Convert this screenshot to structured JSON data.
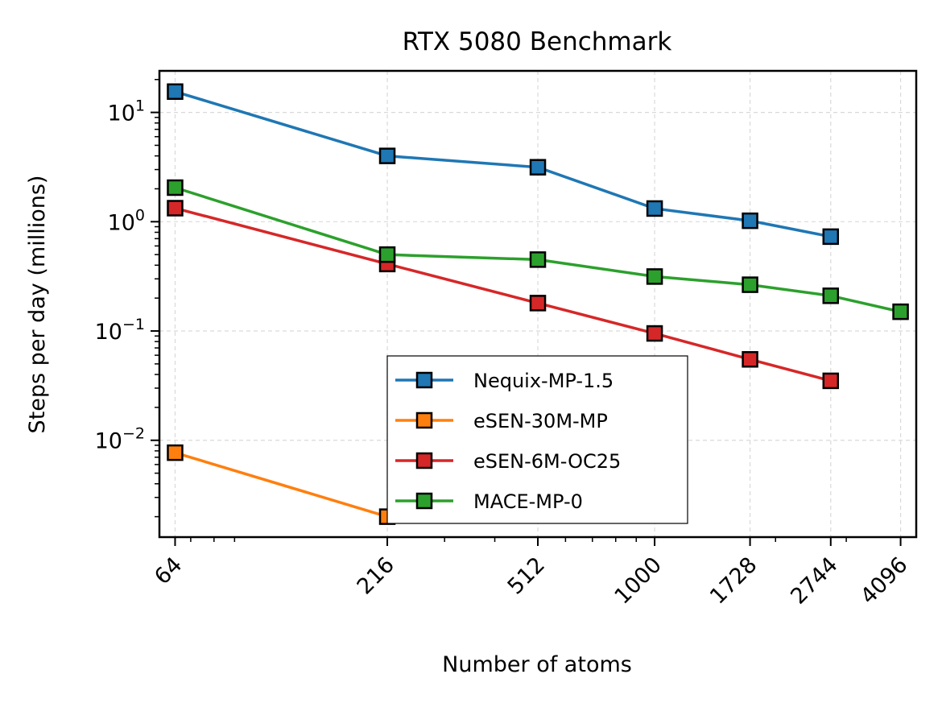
{
  "chart_data": {
    "type": "line",
    "title": "RTX 5080 Benchmark",
    "xlabel": "Number of atoms",
    "ylabel": "Steps per day (millions)",
    "xscale": "log",
    "yscale": "log",
    "x_ticks": [
      64,
      216,
      512,
      1000,
      1728,
      2744,
      4096
    ],
    "x_tick_labels": [
      "64",
      "216",
      "512",
      "1000",
      "1728",
      "2744",
      "4096"
    ],
    "y_ticks": [
      {
        "value": 0.01,
        "base": "10",
        "exp": "−2"
      },
      {
        "value": 0.1,
        "base": "10",
        "exp": "−1"
      },
      {
        "value": 1,
        "base": "10",
        "exp": "0"
      },
      {
        "value": 10,
        "base": "10",
        "exp": "1"
      }
    ],
    "ylim": [
      0.0013,
      24
    ],
    "grid": true,
    "legend_position": "lower center",
    "series": [
      {
        "name": "Nequix-MP-1.5",
        "color": "#1f77b4",
        "x": [
          64,
          216,
          512,
          1000,
          1728,
          2744
        ],
        "y": [
          15.5,
          4.0,
          3.15,
          1.32,
          1.02,
          0.73
        ]
      },
      {
        "name": "eSEN-30M-MP",
        "color": "#ff7f0e",
        "x": [
          64,
          216
        ],
        "y": [
          0.0077,
          0.002
        ]
      },
      {
        "name": "eSEN-6M-OC25",
        "color": "#d62728",
        "x": [
          64,
          216,
          512,
          1000,
          1728,
          2744
        ],
        "y": [
          1.33,
          0.41,
          0.18,
          0.095,
          0.055,
          0.035
        ]
      },
      {
        "name": "MACE-MP-0",
        "color": "#2ca02c",
        "x": [
          64,
          216,
          512,
          1000,
          1728,
          2744,
          4096
        ],
        "y": [
          2.05,
          0.5,
          0.45,
          0.315,
          0.265,
          0.21,
          0.15
        ]
      }
    ]
  }
}
